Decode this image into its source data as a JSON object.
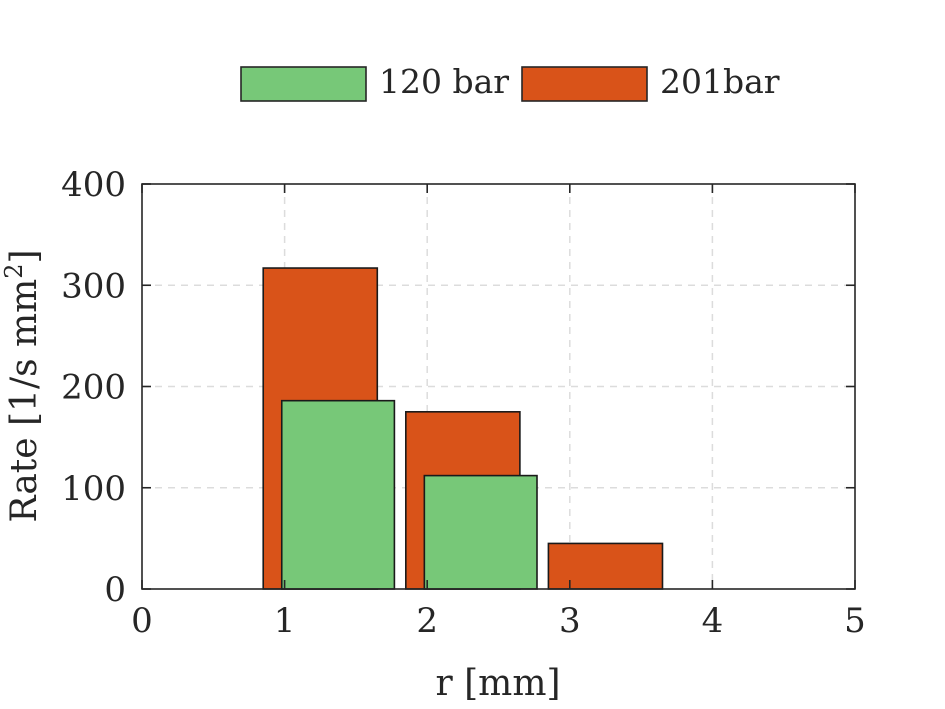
{
  "chart_data": {
    "type": "bar",
    "title": "",
    "xlabel": "r [mm]",
    "ylabel_main": "Rate [1/s mm",
    "ylabel_sup": "2",
    "ylabel_end": "]",
    "xlim": [
      0,
      5
    ],
    "ylim": [
      0,
      400
    ],
    "xticks": [
      0,
      1,
      2,
      3,
      4,
      5
    ],
    "yticks": [
      0,
      100,
      200,
      300,
      400
    ],
    "xtick_labels": [
      "0",
      "1",
      "2",
      "3",
      "4",
      "5"
    ],
    "ytick_labels": [
      "0",
      "100",
      "200",
      "300",
      "400"
    ],
    "grid": true,
    "legend_position": "top-center, outside",
    "series": [
      {
        "name": "120 bar",
        "color": "#77c878",
        "bars": [
          {
            "x0": 0.98,
            "x1": 1.77,
            "value": 186
          },
          {
            "x0": 1.98,
            "x1": 2.77,
            "value": 112
          },
          {
            "x0": 3.98,
            "x1": 4.77,
            "value": 0
          }
        ]
      },
      {
        "name": "201bar",
        "color": "#d95319",
        "bars": [
          {
            "x0": 0.85,
            "x1": 1.65,
            "value": 317
          },
          {
            "x0": 1.85,
            "x1": 2.65,
            "value": 175
          },
          {
            "x0": 2.85,
            "x1": 3.65,
            "value": 45
          },
          {
            "x0": 3.85,
            "x1": 4.65,
            "value": 0
          }
        ]
      }
    ]
  }
}
